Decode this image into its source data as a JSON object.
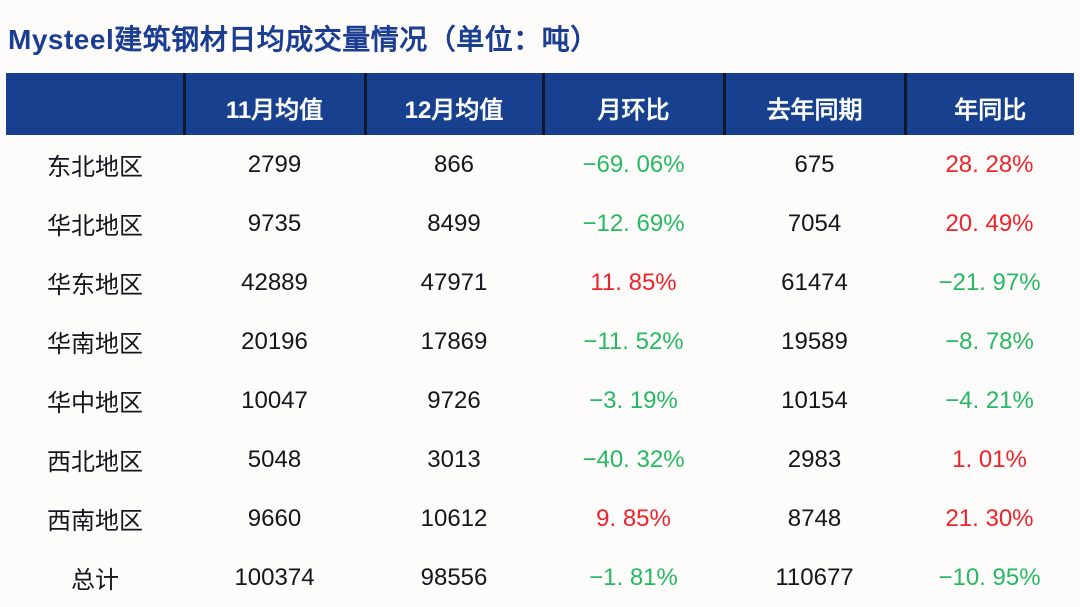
{
  "title": "Mysteel建筑钢材日均成交量情况（单位：吨）",
  "colors": {
    "header-bg": "#17418E",
    "header-text": "#FFFFFF",
    "title": "#1B3E92",
    "text": "#15151C",
    "negative-green": "#25BA62",
    "positive-red": "#F1222B",
    "divider": "#10172B",
    "page-bg": "#FDFCFA"
  },
  "table": {
    "columns": [
      "",
      "11月均值",
      "12月均值",
      "月环比",
      "去年同期",
      "年同比"
    ],
    "rows": [
      {
        "region": "东北地区",
        "nov": "2799",
        "dec": "866",
        "mom": "−69. 06%",
        "last_year": "675",
        "yoy": "28. 28%"
      },
      {
        "region": "华北地区",
        "nov": "9735",
        "dec": "8499",
        "mom": "−12. 69%",
        "last_year": "7054",
        "yoy": "20. 49%"
      },
      {
        "region": "华东地区",
        "nov": "42889",
        "dec": "47971",
        "mom": "11. 85%",
        "last_year": "61474",
        "yoy": "−21. 97%"
      },
      {
        "region": "华南地区",
        "nov": "20196",
        "dec": "17869",
        "mom": "−11. 52%",
        "last_year": "19589",
        "yoy": "−8. 78%"
      },
      {
        "region": "华中地区",
        "nov": "10047",
        "dec": "9726",
        "mom": "−3. 19%",
        "last_year": "10154",
        "yoy": "−4. 21%"
      },
      {
        "region": "西北地区",
        "nov": "5048",
        "dec": "3013",
        "mom": "−40. 32%",
        "last_year": "2983",
        "yoy": "1. 01%"
      },
      {
        "region": "西南地区",
        "nov": "9660",
        "dec": "10612",
        "mom": "9. 85%",
        "last_year": "8748",
        "yoy": "21. 30%"
      },
      {
        "region": "总计",
        "nov": "100374",
        "dec": "98556",
        "mom": "−1. 81%",
        "last_year": "110677",
        "yoy": "−10. 95%"
      }
    ]
  },
  "chart_data": {
    "type": "table",
    "title": "Mysteel建筑钢材日均成交量情况（单位：吨）",
    "unit": "吨",
    "categories": [
      "东北地区",
      "华北地区",
      "华东地区",
      "华南地区",
      "华中地区",
      "西北地区",
      "西南地区",
      "总计"
    ],
    "series": [
      {
        "name": "11月均值",
        "values": [
          2799,
          9735,
          42889,
          20196,
          10047,
          5048,
          9660,
          100374
        ]
      },
      {
        "name": "12月均值",
        "values": [
          866,
          8499,
          47971,
          17869,
          9726,
          3013,
          10612,
          98556
        ]
      },
      {
        "name": "月环比",
        "unit": "%",
        "values": [
          -69.06,
          -12.69,
          11.85,
          -11.52,
          -3.19,
          -40.32,
          9.85,
          -1.81
        ]
      },
      {
        "name": "去年同期",
        "values": [
          675,
          7054,
          61474,
          19589,
          10154,
          2983,
          8748,
          110677
        ]
      },
      {
        "name": "年同比",
        "unit": "%",
        "values": [
          28.28,
          20.49,
          -21.97,
          -8.78,
          -4.21,
          1.01,
          21.3,
          -10.95
        ]
      }
    ],
    "legend_note": "绿色=下降(负值)，红色=上升(正值)"
  }
}
